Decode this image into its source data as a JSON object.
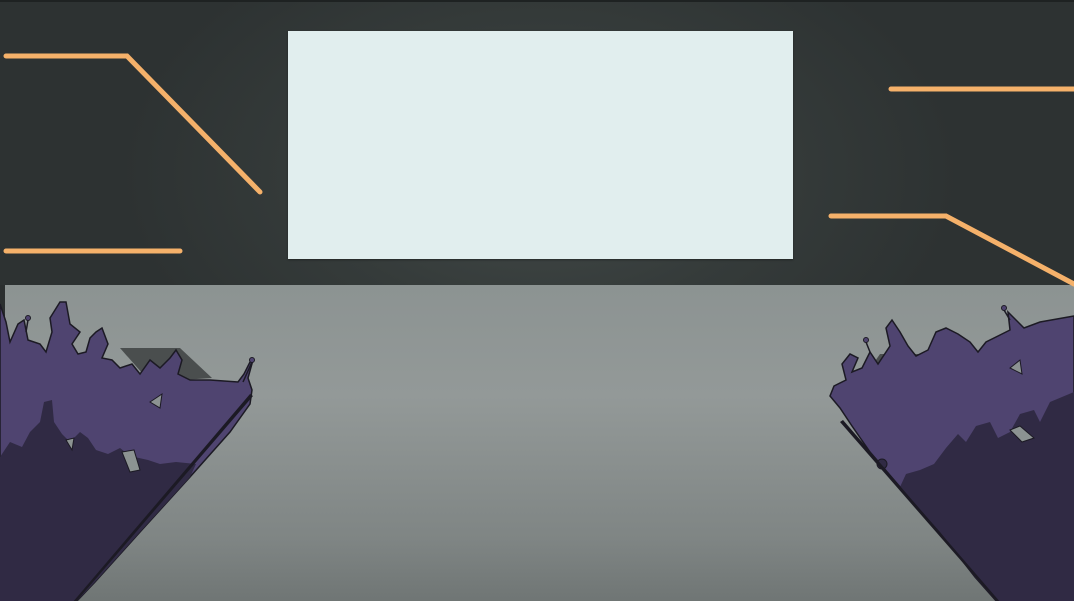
{
  "scene": {
    "colors": {
      "wall": "#353b3a",
      "floor": "#8c9392",
      "screen": "#e1eeee",
      "neon_trim": "#f5b16a",
      "crowd_front": "#4f4470",
      "crowd_back": "#302a44"
    },
    "elements": {
      "projection_screen": "blank",
      "crowd_left": "silhouette-crowd",
      "crowd_right": "silhouette-crowd"
    }
  }
}
